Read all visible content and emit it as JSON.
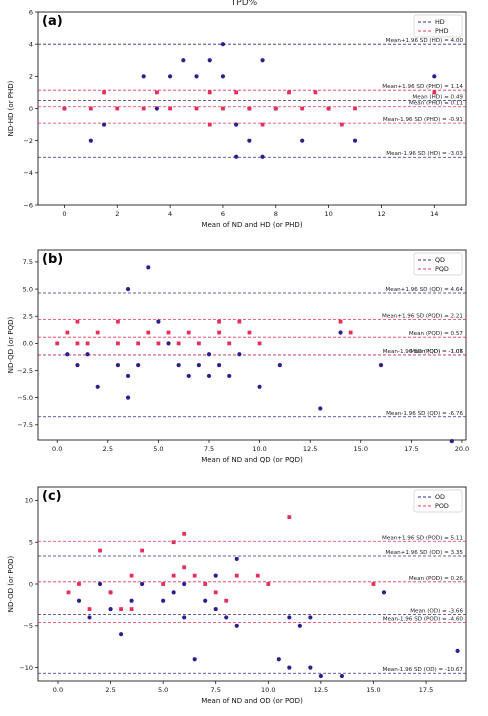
{
  "figure": {
    "title": "TPD%"
  },
  "colors": {
    "blue": "#2b2b8f",
    "red": "#e8305a",
    "blueDot": "#2e1f8a",
    "redDot": "#e3305a"
  },
  "chart_data": [
    {
      "type": "scatter",
      "panel_label": "(a)",
      "xlabel": "Mean of ND and HD (or PHD)",
      "ylabel": "ND-HD (or PHD)",
      "xlim": [
        -1,
        15.2
      ],
      "ylim": [
        -6,
        6
      ],
      "xticks": [
        0,
        2,
        4,
        6,
        8,
        10,
        12,
        14
      ],
      "xtick_labels": [
        "0",
        "2",
        "4",
        "6",
        "8",
        "10",
        "12",
        "14"
      ],
      "yticks": [
        -6,
        -4,
        -2,
        0,
        2,
        4,
        6
      ],
      "ytick_labels": [
        "−6",
        "−4",
        "−2",
        "0",
        "2",
        "4",
        "6"
      ],
      "legend": [
        "HD",
        "PHD"
      ],
      "lines": [
        {
          "series": 0,
          "y": 4.0,
          "label": "Mean+1.96 SD (HD) = 4.00"
        },
        {
          "series": 1,
          "y": 1.14,
          "label": "Mean+1.96 SD (PHD) = 1.14"
        },
        {
          "series": 0,
          "y": 0.49,
          "label": "Mean (HD) = 0.49"
        },
        {
          "series": 1,
          "y": 0.11,
          "label": "Mean (PHD) = 0.11"
        },
        {
          "series": 1,
          "y": -0.91,
          "label": "Mean-1.96 SD (PHD) = -0.91"
        },
        {
          "series": 0,
          "y": -3.03,
          "label": "Mean-1.96 SD (HD) = -3.03"
        }
      ],
      "series": [
        {
          "name": "HD",
          "points": [
            [
              0,
              0
            ],
            [
              1,
              -2
            ],
            [
              1.5,
              -1
            ],
            [
              3,
              2
            ],
            [
              3.5,
              0
            ],
            [
              4,
              2
            ],
            [
              4.5,
              3
            ],
            [
              5,
              2
            ],
            [
              5.5,
              3
            ],
            [
              6,
              4
            ],
            [
              6,
              2
            ],
            [
              6.5,
              -1
            ],
            [
              6.5,
              -3
            ],
            [
              7,
              0
            ],
            [
              7,
              -2
            ],
            [
              7.5,
              3
            ],
            [
              7.5,
              -3
            ],
            [
              8,
              0
            ],
            [
              9,
              -2
            ],
            [
              10,
              0
            ],
            [
              11,
              -2
            ],
            [
              14,
              2
            ]
          ]
        },
        {
          "name": "PHD",
          "points": [
            [
              0,
              0
            ],
            [
              1,
              0
            ],
            [
              1.5,
              1
            ],
            [
              2,
              0
            ],
            [
              3,
              0
            ],
            [
              3.5,
              1
            ],
            [
              4,
              0
            ],
            [
              5,
              0
            ],
            [
              5.5,
              1
            ],
            [
              5.5,
              -1
            ],
            [
              6,
              0
            ],
            [
              6.5,
              1
            ],
            [
              7,
              0
            ],
            [
              7.5,
              -1
            ],
            [
              8,
              0
            ],
            [
              8.5,
              1
            ],
            [
              9,
              0
            ],
            [
              9.5,
              1
            ],
            [
              10,
              0
            ],
            [
              10.5,
              -1
            ],
            [
              11,
              0
            ],
            [
              14,
              1
            ]
          ]
        }
      ]
    },
    {
      "type": "scatter",
      "panel_label": "(b)",
      "xlabel": "Mean of ND and QD (or PQD)",
      "ylabel": "ND-QD (or PQD)",
      "xlim": [
        -0.95,
        20.2
      ],
      "ylim": [
        -8.9,
        8.6
      ],
      "xticks": [
        0,
        2.5,
        5,
        7.5,
        10,
        12.5,
        15,
        17.5,
        20
      ],
      "xtick_labels": [
        "0.0",
        "2.5",
        "5.0",
        "7.5",
        "10.0",
        "12.5",
        "15.0",
        "17.5",
        "20.0"
      ],
      "yticks": [
        -7.5,
        -5,
        -2.5,
        0,
        2.5,
        5,
        7.5
      ],
      "ytick_labels": [
        "−7.5",
        "−5.0",
        "−2.5",
        "0.0",
        "2.5",
        "5.0",
        "7.5"
      ],
      "legend": [
        "QD",
        "PQD"
      ],
      "lines": [
        {
          "series": 0,
          "y": 4.64,
          "label": "Mean+1.96 SD (QD) = 4.64"
        },
        {
          "series": 1,
          "y": 2.21,
          "label": "Mean+1.96 SD (PQD) = 2.21"
        },
        {
          "series": 1,
          "y": 0.57,
          "label": "Mean (PQD) = 0.57"
        },
        {
          "series": 0,
          "y": -1.06,
          "label": "Mean (QD) = -1.06"
        },
        {
          "series": 1,
          "y": -1.07,
          "label": "Mean-1.96 SD (PQD) = -1.07"
        },
        {
          "series": 0,
          "y": -6.76,
          "label": "Mean-1.96 SD (QD) = -6.76"
        }
      ],
      "series": [
        {
          "name": "QD",
          "points": [
            [
              0.5,
              -1
            ],
            [
              1,
              -2
            ],
            [
              1.5,
              -1
            ],
            [
              2,
              -4
            ],
            [
              3,
              -2
            ],
            [
              3.5,
              5
            ],
            [
              3.5,
              -5
            ],
            [
              3.5,
              -3
            ],
            [
              4,
              -2
            ],
            [
              4.5,
              7
            ],
            [
              5,
              2
            ],
            [
              5.5,
              0
            ],
            [
              6,
              -2
            ],
            [
              6.5,
              -3
            ],
            [
              7,
              -2
            ],
            [
              7.5,
              -1
            ],
            [
              7.5,
              -3
            ],
            [
              8,
              -2
            ],
            [
              8.5,
              -3
            ],
            [
              9,
              -1
            ],
            [
              10,
              -4
            ],
            [
              11,
              -2
            ],
            [
              13,
              -6
            ],
            [
              14,
              1
            ],
            [
              16,
              -2
            ],
            [
              19.5,
              -9
            ]
          ]
        },
        {
          "name": "PQD",
          "points": [
            [
              0,
              0
            ],
            [
              0.5,
              1
            ],
            [
              1,
              2
            ],
            [
              1,
              0
            ],
            [
              1.5,
              0
            ],
            [
              2,
              1
            ],
            [
              3,
              2
            ],
            [
              3,
              0
            ],
            [
              4,
              0
            ],
            [
              4.5,
              1
            ],
            [
              5,
              0
            ],
            [
              5.5,
              1
            ],
            [
              6,
              0
            ],
            [
              6.5,
              1
            ],
            [
              7,
              0
            ],
            [
              8,
              2
            ],
            [
              8,
              1
            ],
            [
              8.5,
              0
            ],
            [
              9,
              2
            ],
            [
              9.5,
              1
            ],
            [
              10,
              0
            ],
            [
              14,
              2
            ],
            [
              14.5,
              1
            ]
          ]
        }
      ]
    },
    {
      "type": "scatter",
      "panel_label": "(c)",
      "xlabel": "Mean of ND and OD (or POD)",
      "ylabel": "ND-OD (or POD)",
      "xlim": [
        -0.95,
        19.4
      ],
      "ylim": [
        -11.6,
        11.6
      ],
      "xticks": [
        0,
        2.5,
        5,
        7.5,
        10,
        12.5,
        15,
        17.5
      ],
      "xtick_labels": [
        "0.0",
        "2.5",
        "5.0",
        "7.5",
        "10.0",
        "12.5",
        "15.0",
        "17.5"
      ],
      "yticks": [
        -10,
        -5,
        0,
        5,
        10
      ],
      "ytick_labels": [
        "−10",
        "−5",
        "0",
        "5",
        "10"
      ],
      "legend": [
        "OD",
        "POD"
      ],
      "lines": [
        {
          "series": 1,
          "y": 5.11,
          "label": "Mean+1.96 SD (POD) = 5.11"
        },
        {
          "series": 0,
          "y": 3.35,
          "label": "Mean+1.96 SD (OD) = 3.35"
        },
        {
          "series": 1,
          "y": 0.26,
          "label": "Mean (POD) = 0.26"
        },
        {
          "series": 0,
          "y": -3.66,
          "label": "Mean (OD) = -3.66"
        },
        {
          "series": 1,
          "y": -4.6,
          "label": "Mean-1.96 SD (POD) = -4.60"
        },
        {
          "series": 0,
          "y": -10.67,
          "label": "Mean-1.96 SD (OD) = -10.67"
        }
      ],
      "series": [
        {
          "name": "OD",
          "points": [
            [
              1,
              -2
            ],
            [
              1.5,
              -4
            ],
            [
              2,
              0
            ],
            [
              2.5,
              -1
            ],
            [
              2.5,
              -3
            ],
            [
              3,
              -6
            ],
            [
              3.5,
              -2
            ],
            [
              4,
              0
            ],
            [
              5,
              -2
            ],
            [
              5.5,
              -1
            ],
            [
              6,
              0
            ],
            [
              6,
              -4
            ],
            [
              6.5,
              -9
            ],
            [
              7,
              -2
            ],
            [
              7.5,
              1
            ],
            [
              7.5,
              -3
            ],
            [
              8,
              -4
            ],
            [
              8.5,
              3
            ],
            [
              8.5,
              -5
            ],
            [
              10.5,
              -9
            ],
            [
              11,
              -4
            ],
            [
              11,
              -10
            ],
            [
              11.5,
              -5
            ],
            [
              12,
              -4
            ],
            [
              12,
              -10
            ],
            [
              12.5,
              -11
            ],
            [
              13.5,
              -11
            ],
            [
              15.5,
              -1
            ],
            [
              19,
              -8
            ]
          ]
        },
        {
          "name": "POD",
          "points": [
            [
              0.5,
              -1
            ],
            [
              1,
              0
            ],
            [
              1.5,
              -3
            ],
            [
              2,
              4
            ],
            [
              2.5,
              -1
            ],
            [
              3,
              -3
            ],
            [
              3.5,
              1
            ],
            [
              3.5,
              -3
            ],
            [
              4,
              4
            ],
            [
              5,
              0
            ],
            [
              5.5,
              5
            ],
            [
              5.5,
              1
            ],
            [
              6,
              6
            ],
            [
              6,
              2
            ],
            [
              6.5,
              1
            ],
            [
              7,
              0
            ],
            [
              7.5,
              -1
            ],
            [
              8,
              -2
            ],
            [
              8.5,
              1
            ],
            [
              9.5,
              1
            ],
            [
              10,
              0
            ],
            [
              11,
              8
            ],
            [
              15,
              0
            ]
          ]
        }
      ]
    }
  ]
}
